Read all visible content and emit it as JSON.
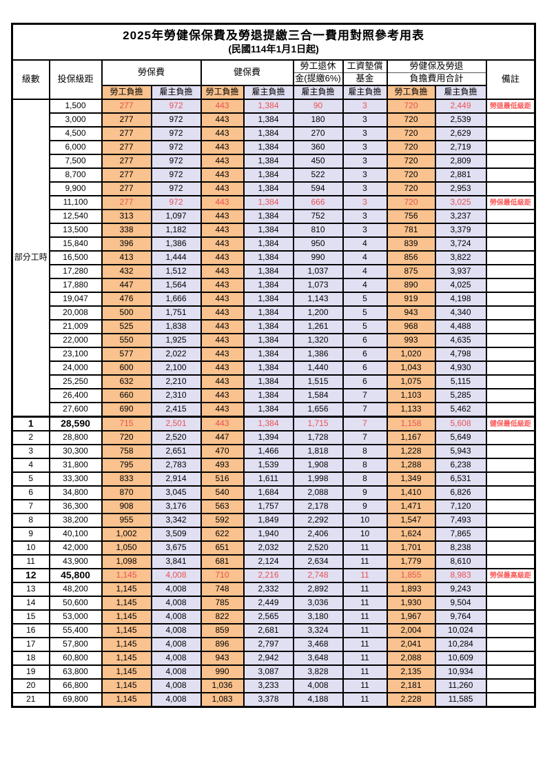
{
  "title": "2025年勞健保保費及勞退提繳三合一費用對照參考用表",
  "subtitle": "(民國114年1月1日起)",
  "colors": {
    "employee_bg": "#F9C28E",
    "employer_bg": "#E1DFF2",
    "highlight_text": "#E85151",
    "remark_text": "#FA5A5A"
  },
  "header": {
    "level": "級數",
    "bracket": "投保級距",
    "labor_group": "勞保費",
    "health_group": "健保費",
    "pension_line1": "勞工退休",
    "pension_line2": "金(提繳6%)",
    "fund_line1": "工資墊償",
    "fund_line2": "基金",
    "total_line1": "勞健保及勞退",
    "total_line2": "負擔費用合計",
    "note": "備註",
    "sub_employee": "勞工負擔",
    "sub_employer": "雇主負擔"
  },
  "part_time": {
    "label": "部分工時",
    "row_count": 23
  },
  "rows": [
    {
      "level": "",
      "bracket": "1,500",
      "li_e": "277",
      "li_r": "972",
      "hi_e": "443",
      "hi_r": "1,384",
      "pn_r": "90",
      "wf_r": "3",
      "tt_e": "720",
      "tt_r": "2,449",
      "note": "勞退最低級距",
      "hl": true
    },
    {
      "level": "",
      "bracket": "3,000",
      "li_e": "277",
      "li_r": "972",
      "hi_e": "443",
      "hi_r": "1,384",
      "pn_r": "180",
      "wf_r": "3",
      "tt_e": "720",
      "tt_r": "2,539"
    },
    {
      "level": "",
      "bracket": "4,500",
      "li_e": "277",
      "li_r": "972",
      "hi_e": "443",
      "hi_r": "1,384",
      "pn_r": "270",
      "wf_r": "3",
      "tt_e": "720",
      "tt_r": "2,629"
    },
    {
      "level": "",
      "bracket": "6,000",
      "li_e": "277",
      "li_r": "972",
      "hi_e": "443",
      "hi_r": "1,384",
      "pn_r": "360",
      "wf_r": "3",
      "tt_e": "720",
      "tt_r": "2,719"
    },
    {
      "level": "",
      "bracket": "7,500",
      "li_e": "277",
      "li_r": "972",
      "hi_e": "443",
      "hi_r": "1,384",
      "pn_r": "450",
      "wf_r": "3",
      "tt_e": "720",
      "tt_r": "2,809"
    },
    {
      "level": "",
      "bracket": "8,700",
      "li_e": "277",
      "li_r": "972",
      "hi_e": "443",
      "hi_r": "1,384",
      "pn_r": "522",
      "wf_r": "3",
      "tt_e": "720",
      "tt_r": "2,881"
    },
    {
      "level": "",
      "bracket": "9,900",
      "li_e": "277",
      "li_r": "972",
      "hi_e": "443",
      "hi_r": "1,384",
      "pn_r": "594",
      "wf_r": "3",
      "tt_e": "720",
      "tt_r": "2,953"
    },
    {
      "level": "",
      "bracket": "11,100",
      "li_e": "277",
      "li_r": "972",
      "hi_e": "443",
      "hi_r": "1,384",
      "pn_r": "666",
      "wf_r": "3",
      "tt_e": "720",
      "tt_r": "3,025",
      "note": "勞保最低級距",
      "hl": true
    },
    {
      "level": "",
      "bracket": "12,540",
      "li_e": "313",
      "li_r": "1,097",
      "hi_e": "443",
      "hi_r": "1,384",
      "pn_r": "752",
      "wf_r": "3",
      "tt_e": "756",
      "tt_r": "3,237"
    },
    {
      "level": "",
      "bracket": "13,500",
      "li_e": "338",
      "li_r": "1,182",
      "hi_e": "443",
      "hi_r": "1,384",
      "pn_r": "810",
      "wf_r": "3",
      "tt_e": "781",
      "tt_r": "3,379"
    },
    {
      "level": "",
      "bracket": "15,840",
      "li_e": "396",
      "li_r": "1,386",
      "hi_e": "443",
      "hi_r": "1,384",
      "pn_r": "950",
      "wf_r": "4",
      "tt_e": "839",
      "tt_r": "3,724"
    },
    {
      "level": "",
      "bracket": "16,500",
      "li_e": "413",
      "li_r": "1,444",
      "hi_e": "443",
      "hi_r": "1,384",
      "pn_r": "990",
      "wf_r": "4",
      "tt_e": "856",
      "tt_r": "3,822"
    },
    {
      "level": "",
      "bracket": "17,280",
      "li_e": "432",
      "li_r": "1,512",
      "hi_e": "443",
      "hi_r": "1,384",
      "pn_r": "1,037",
      "wf_r": "4",
      "tt_e": "875",
      "tt_r": "3,937"
    },
    {
      "level": "",
      "bracket": "17,880",
      "li_e": "447",
      "li_r": "1,564",
      "hi_e": "443",
      "hi_r": "1,384",
      "pn_r": "1,073",
      "wf_r": "4",
      "tt_e": "890",
      "tt_r": "4,025"
    },
    {
      "level": "",
      "bracket": "19,047",
      "li_e": "476",
      "li_r": "1,666",
      "hi_e": "443",
      "hi_r": "1,384",
      "pn_r": "1,143",
      "wf_r": "5",
      "tt_e": "919",
      "tt_r": "4,198"
    },
    {
      "level": "",
      "bracket": "20,008",
      "li_e": "500",
      "li_r": "1,751",
      "hi_e": "443",
      "hi_r": "1,384",
      "pn_r": "1,200",
      "wf_r": "5",
      "tt_e": "943",
      "tt_r": "4,340"
    },
    {
      "level": "",
      "bracket": "21,009",
      "li_e": "525",
      "li_r": "1,838",
      "hi_e": "443",
      "hi_r": "1,384",
      "pn_r": "1,261",
      "wf_r": "5",
      "tt_e": "968",
      "tt_r": "4,488"
    },
    {
      "level": "",
      "bracket": "22,000",
      "li_e": "550",
      "li_r": "1,925",
      "hi_e": "443",
      "hi_r": "1,384",
      "pn_r": "1,320",
      "wf_r": "6",
      "tt_e": "993",
      "tt_r": "4,635"
    },
    {
      "level": "",
      "bracket": "23,100",
      "li_e": "577",
      "li_r": "2,022",
      "hi_e": "443",
      "hi_r": "1,384",
      "pn_r": "1,386",
      "wf_r": "6",
      "tt_e": "1,020",
      "tt_r": "4,798"
    },
    {
      "level": "",
      "bracket": "24,000",
      "li_e": "600",
      "li_r": "2,100",
      "hi_e": "443",
      "hi_r": "1,384",
      "pn_r": "1,440",
      "wf_r": "6",
      "tt_e": "1,043",
      "tt_r": "4,930"
    },
    {
      "level": "",
      "bracket": "25,250",
      "li_e": "632",
      "li_r": "2,210",
      "hi_e": "443",
      "hi_r": "1,384",
      "pn_r": "1,515",
      "wf_r": "6",
      "tt_e": "1,075",
      "tt_r": "5,115"
    },
    {
      "level": "",
      "bracket": "26,400",
      "li_e": "660",
      "li_r": "2,310",
      "hi_e": "443",
      "hi_r": "1,384",
      "pn_r": "1,584",
      "wf_r": "7",
      "tt_e": "1,103",
      "tt_r": "5,285"
    },
    {
      "level": "",
      "bracket": "27,600",
      "li_e": "690",
      "li_r": "2,415",
      "hi_e": "443",
      "hi_r": "1,384",
      "pn_r": "1,656",
      "wf_r": "7",
      "tt_e": "1,133",
      "tt_r": "5,462"
    },
    {
      "level": "1",
      "bracket": "28,590",
      "li_e": "715",
      "li_r": "2,501",
      "hi_e": "443",
      "hi_r": "1,384",
      "pn_r": "1,715",
      "wf_r": "7",
      "tt_e": "1,158",
      "tt_r": "5,608",
      "note": "健保最低級距",
      "hl": true,
      "bold": true,
      "section": true
    },
    {
      "level": "2",
      "bracket": "28,800",
      "li_e": "720",
      "li_r": "2,520",
      "hi_e": "447",
      "hi_r": "1,394",
      "pn_r": "1,728",
      "wf_r": "7",
      "tt_e": "1,167",
      "tt_r": "5,649"
    },
    {
      "level": "3",
      "bracket": "30,300",
      "li_e": "758",
      "li_r": "2,651",
      "hi_e": "470",
      "hi_r": "1,466",
      "pn_r": "1,818",
      "wf_r": "8",
      "tt_e": "1,228",
      "tt_r": "5,943"
    },
    {
      "level": "4",
      "bracket": "31,800",
      "li_e": "795",
      "li_r": "2,783",
      "hi_e": "493",
      "hi_r": "1,539",
      "pn_r": "1,908",
      "wf_r": "8",
      "tt_e": "1,288",
      "tt_r": "6,238"
    },
    {
      "level": "5",
      "bracket": "33,300",
      "li_e": "833",
      "li_r": "2,914",
      "hi_e": "516",
      "hi_r": "1,611",
      "pn_r": "1,998",
      "wf_r": "8",
      "tt_e": "1,349",
      "tt_r": "6,531"
    },
    {
      "level": "6",
      "bracket": "34,800",
      "li_e": "870",
      "li_r": "3,045",
      "hi_e": "540",
      "hi_r": "1,684",
      "pn_r": "2,088",
      "wf_r": "9",
      "tt_e": "1,410",
      "tt_r": "6,826"
    },
    {
      "level": "7",
      "bracket": "36,300",
      "li_e": "908",
      "li_r": "3,176",
      "hi_e": "563",
      "hi_r": "1,757",
      "pn_r": "2,178",
      "wf_r": "9",
      "tt_e": "1,471",
      "tt_r": "7,120"
    },
    {
      "level": "8",
      "bracket": "38,200",
      "li_e": "955",
      "li_r": "3,342",
      "hi_e": "592",
      "hi_r": "1,849",
      "pn_r": "2,292",
      "wf_r": "10",
      "tt_e": "1,547",
      "tt_r": "7,493"
    },
    {
      "level": "9",
      "bracket": "40,100",
      "li_e": "1,002",
      "li_r": "3,509",
      "hi_e": "622",
      "hi_r": "1,940",
      "pn_r": "2,406",
      "wf_r": "10",
      "tt_e": "1,624",
      "tt_r": "7,865"
    },
    {
      "level": "10",
      "bracket": "42,000",
      "li_e": "1,050",
      "li_r": "3,675",
      "hi_e": "651",
      "hi_r": "2,032",
      "pn_r": "2,520",
      "wf_r": "11",
      "tt_e": "1,701",
      "tt_r": "8,238"
    },
    {
      "level": "11",
      "bracket": "43,900",
      "li_e": "1,098",
      "li_r": "3,841",
      "hi_e": "681",
      "hi_r": "2,124",
      "pn_r": "2,634",
      "wf_r": "11",
      "tt_e": "1,779",
      "tt_r": "8,610"
    },
    {
      "level": "12",
      "bracket": "45,800",
      "li_e": "1,145",
      "li_r": "4,008",
      "hi_e": "710",
      "hi_r": "2,216",
      "pn_r": "2,748",
      "wf_r": "11",
      "tt_e": "1,855",
      "tt_r": "8,983",
      "note": "勞保最高級距",
      "hl": true,
      "bold": true
    },
    {
      "level": "13",
      "bracket": "48,200",
      "li_e": "1,145",
      "li_r": "4,008",
      "hi_e": "748",
      "hi_r": "2,332",
      "pn_r": "2,892",
      "wf_r": "11",
      "tt_e": "1,893",
      "tt_r": "9,243"
    },
    {
      "level": "14",
      "bracket": "50,600",
      "li_e": "1,145",
      "li_r": "4,008",
      "hi_e": "785",
      "hi_r": "2,449",
      "pn_r": "3,036",
      "wf_r": "11",
      "tt_e": "1,930",
      "tt_r": "9,504"
    },
    {
      "level": "15",
      "bracket": "53,000",
      "li_e": "1,145",
      "li_r": "4,008",
      "hi_e": "822",
      "hi_r": "2,565",
      "pn_r": "3,180",
      "wf_r": "11",
      "tt_e": "1,967",
      "tt_r": "9,764"
    },
    {
      "level": "16",
      "bracket": "55,400",
      "li_e": "1,145",
      "li_r": "4,008",
      "hi_e": "859",
      "hi_r": "2,681",
      "pn_r": "3,324",
      "wf_r": "11",
      "tt_e": "2,004",
      "tt_r": "10,024"
    },
    {
      "level": "17",
      "bracket": "57,800",
      "li_e": "1,145",
      "li_r": "4,008",
      "hi_e": "896",
      "hi_r": "2,797",
      "pn_r": "3,468",
      "wf_r": "11",
      "tt_e": "2,041",
      "tt_r": "10,284"
    },
    {
      "level": "18",
      "bracket": "60,800",
      "li_e": "1,145",
      "li_r": "4,008",
      "hi_e": "943",
      "hi_r": "2,942",
      "pn_r": "3,648",
      "wf_r": "11",
      "tt_e": "2,088",
      "tt_r": "10,609"
    },
    {
      "level": "19",
      "bracket": "63,800",
      "li_e": "1,145",
      "li_r": "4,008",
      "hi_e": "990",
      "hi_r": "3,087",
      "pn_r": "3,828",
      "wf_r": "11",
      "tt_e": "2,135",
      "tt_r": "10,934"
    },
    {
      "level": "20",
      "bracket": "66,800",
      "li_e": "1,145",
      "li_r": "4,008",
      "hi_e": "1,036",
      "hi_r": "3,233",
      "pn_r": "4,008",
      "wf_r": "11",
      "tt_e": "2,181",
      "tt_r": "11,260"
    },
    {
      "level": "21",
      "bracket": "69,800",
      "li_e": "1,145",
      "li_r": "4,008",
      "hi_e": "1,083",
      "hi_r": "3,378",
      "pn_r": "4,188",
      "wf_r": "11",
      "tt_e": "2,228",
      "tt_r": "11,585"
    }
  ]
}
